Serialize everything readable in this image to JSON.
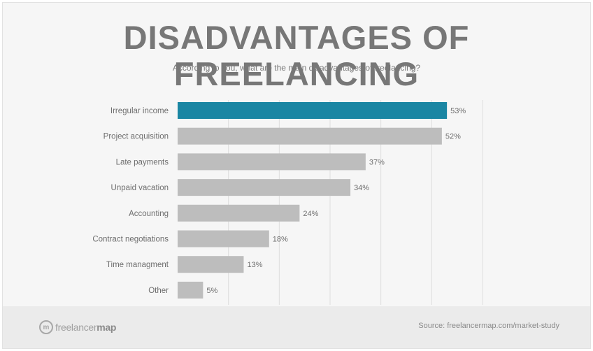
{
  "header": {
    "title": "DISADVANTAGES OF FREELANCING",
    "subtitle": "According to you, what are the main disadvantages of freelancing?"
  },
  "footer": {
    "logo_light": "freelancer",
    "logo_bold": "map",
    "source": "Source: freelancermap.com/market-study"
  },
  "colors": {
    "highlight": "#1a86a3",
    "bar": "#bdbdbd",
    "grid": "#dddddd",
    "label": "#6e6e6e"
  },
  "chart_data": {
    "type": "bar",
    "orientation": "horizontal",
    "title": "DISADVANTAGES OF FREELANCING",
    "subtitle": "According to you, what are the main disadvantages of freelancing?",
    "categories": [
      "Irregular income",
      "Project acquisition",
      "Late payments",
      "Unpaid vacation",
      "Accounting",
      "Contract negotiations",
      "Time managment",
      "Other"
    ],
    "values": [
      53,
      52,
      37,
      34,
      24,
      18,
      13,
      5
    ],
    "value_labels": [
      "53%",
      "52%",
      "37%",
      "34%",
      "24%",
      "18%",
      "13%",
      "5%"
    ],
    "highlighted_category": "Irregular income",
    "xlim": [
      0,
      60
    ],
    "grid": true,
    "legend": "none"
  }
}
